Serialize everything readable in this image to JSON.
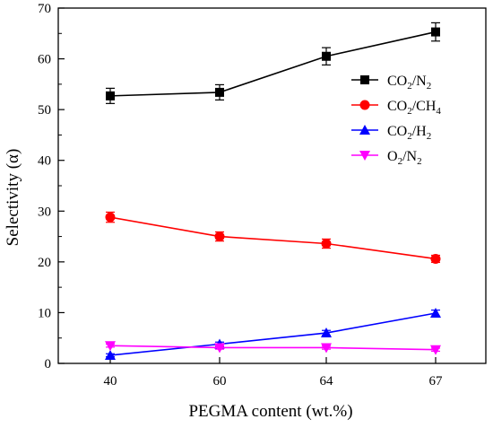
{
  "chart_data": {
    "type": "line",
    "title": "",
    "xlabel": "PEGMA content (wt.%)",
    "ylabel": "Selectivity (α)",
    "categories": [
      "40",
      "60",
      "64",
      "67"
    ],
    "ylim": [
      0,
      70
    ],
    "yticks": [
      0,
      10,
      20,
      30,
      40,
      50,
      60,
      70
    ],
    "grid": false,
    "legend_position": "top-right",
    "series": [
      {
        "name": "CO2/N2",
        "legend_parts": [
          [
            "CO",
            0
          ],
          [
            "2",
            1
          ],
          [
            "/N",
            0
          ],
          [
            "2",
            1
          ]
        ],
        "marker": "square",
        "color": "#000000",
        "values": [
          52.7,
          53.4,
          60.5,
          65.3
        ],
        "errors": [
          1.5,
          1.5,
          1.7,
          1.8
        ]
      },
      {
        "name": "CO2/CH4",
        "legend_parts": [
          [
            "CO",
            0
          ],
          [
            "2",
            1
          ],
          [
            "/CH",
            0
          ],
          [
            "4",
            1
          ]
        ],
        "marker": "circle",
        "color": "#ff0000",
        "values": [
          28.8,
          25.0,
          23.6,
          20.6
        ],
        "errors": [
          1.0,
          0.9,
          0.9,
          0.7
        ]
      },
      {
        "name": "CO2/H2",
        "legend_parts": [
          [
            "CO",
            0
          ],
          [
            "2",
            1
          ],
          [
            "/H",
            0
          ],
          [
            "2",
            1
          ]
        ],
        "marker": "triangle-up",
        "color": "#0000ff",
        "values": [
          1.6,
          3.8,
          6.0,
          9.9
        ],
        "errors": [
          0.3,
          0.4,
          0.5,
          0.6
        ]
      },
      {
        "name": "O2/N2",
        "legend_parts": [
          [
            "O",
            0
          ],
          [
            "2",
            1
          ],
          [
            "/N",
            0
          ],
          [
            "2",
            1
          ]
        ],
        "marker": "triangle-down",
        "color": "#ff00ff",
        "values": [
          3.5,
          3.1,
          3.1,
          2.7
        ],
        "errors": [
          0.3,
          0.3,
          0.3,
          0.3
        ]
      }
    ]
  }
}
